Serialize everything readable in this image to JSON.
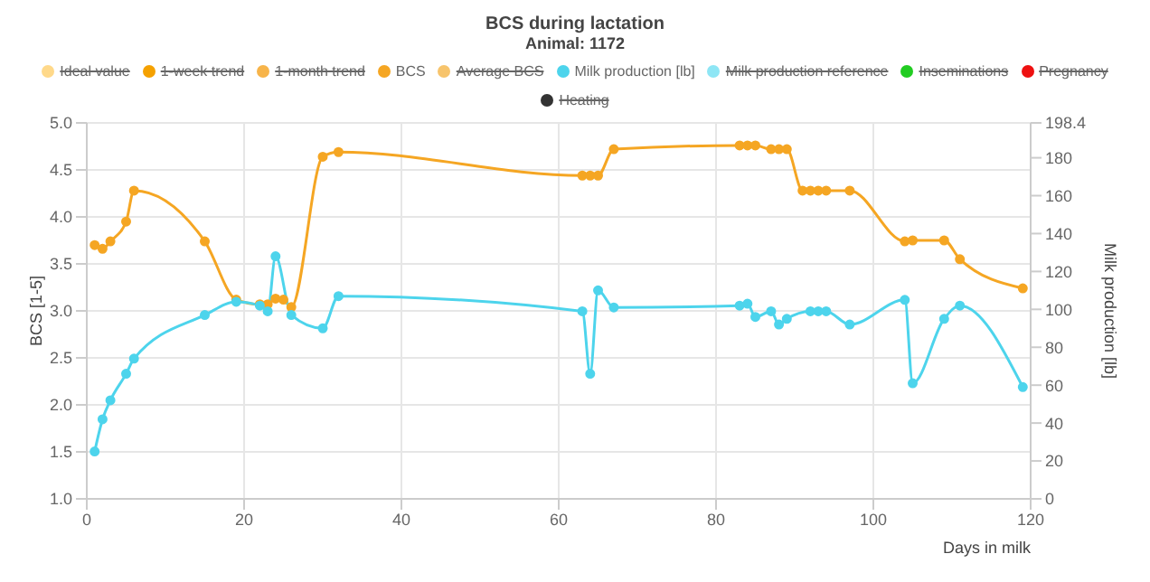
{
  "chart_data": {
    "type": "line",
    "title": "BCS during lactation",
    "subtitle": "Animal: 1172",
    "xlabel": "Days in milk",
    "ylabel": "BCS [1-5]",
    "y2label": "Milk production [lb]",
    "xlim": [
      0,
      120
    ],
    "xticks": [
      0,
      20,
      40,
      60,
      80,
      100,
      120
    ],
    "ylim": [
      1,
      5
    ],
    "yticks": [
      {
        "value": 1,
        "label": "1.0"
      },
      {
        "value": 1.5,
        "label": "1.5"
      },
      {
        "value": 2,
        "label": "2.0"
      },
      {
        "value": 2.5,
        "label": "2.5"
      },
      {
        "value": 3,
        "label": "3.0"
      },
      {
        "value": 3.5,
        "label": "3.5"
      },
      {
        "value": 4,
        "label": "4.0"
      },
      {
        "value": 4.5,
        "label": "4.5"
      },
      {
        "value": 5,
        "label": "5.0"
      }
    ],
    "y2lim": [
      0,
      198.4
    ],
    "y2ticks": [
      0,
      20,
      40,
      60,
      80,
      100,
      120,
      140,
      160,
      180,
      198.4
    ],
    "grid": true,
    "legend": "top",
    "marker": "circle",
    "line_style": "solid",
    "series": [
      {
        "name": "Ideal value",
        "color": "#ffd98a"
      },
      {
        "name": "1-week trend",
        "color": "#f5a100"
      },
      {
        "name": "1-month trend",
        "color": "#f7b44a"
      },
      {
        "name": "BCS",
        "color": "#f5a623",
        "x": [
          1,
          2,
          3,
          5,
          6,
          15,
          19,
          22,
          23,
          24,
          25,
          26,
          30,
          32,
          63,
          64,
          65,
          67,
          83,
          84,
          85,
          87,
          88,
          89,
          91,
          92,
          93,
          94,
          97,
          104,
          105,
          109,
          111,
          119
        ],
        "values": [
          3.7,
          3.66,
          3.74,
          3.95,
          4.28,
          3.74,
          3.12,
          3.07,
          3.07,
          3.13,
          3.12,
          3.04,
          4.64,
          4.69,
          4.44,
          4.44,
          4.44,
          4.72,
          4.76,
          4.76,
          4.76,
          4.72,
          4.72,
          4.72,
          4.28,
          4.28,
          4.28,
          4.28,
          4.28,
          3.74,
          3.75,
          3.75,
          3.55,
          3.24
        ]
      },
      {
        "name": "Average BCS",
        "color": "#f7c46c"
      },
      {
        "name": "Milk production [lb]",
        "color": "#4dd4ec",
        "axis": "y2",
        "x": [
          1,
          2,
          3,
          5,
          6,
          15,
          19,
          22,
          23,
          24,
          26,
          30,
          32,
          63,
          64,
          65,
          67,
          83,
          84,
          85,
          87,
          88,
          89,
          92,
          93,
          94,
          97,
          104,
          105,
          109,
          111,
          119
        ],
        "values": [
          25,
          42,
          52,
          66,
          74,
          97,
          104,
          102,
          99,
          128,
          97,
          90,
          107,
          99,
          66,
          110,
          101,
          102,
          103,
          96,
          99,
          92,
          95,
          99,
          99,
          99,
          92,
          105,
          61,
          95,
          102,
          59
        ]
      },
      {
        "name": "Milk production reference",
        "color": "#8ee6f5"
      },
      {
        "name": "Inseminations",
        "color": "#22cc22"
      },
      {
        "name": "Pregnancy",
        "color": "#ee1111"
      },
      {
        "name": "Heating",
        "color": "#333333"
      }
    ]
  }
}
